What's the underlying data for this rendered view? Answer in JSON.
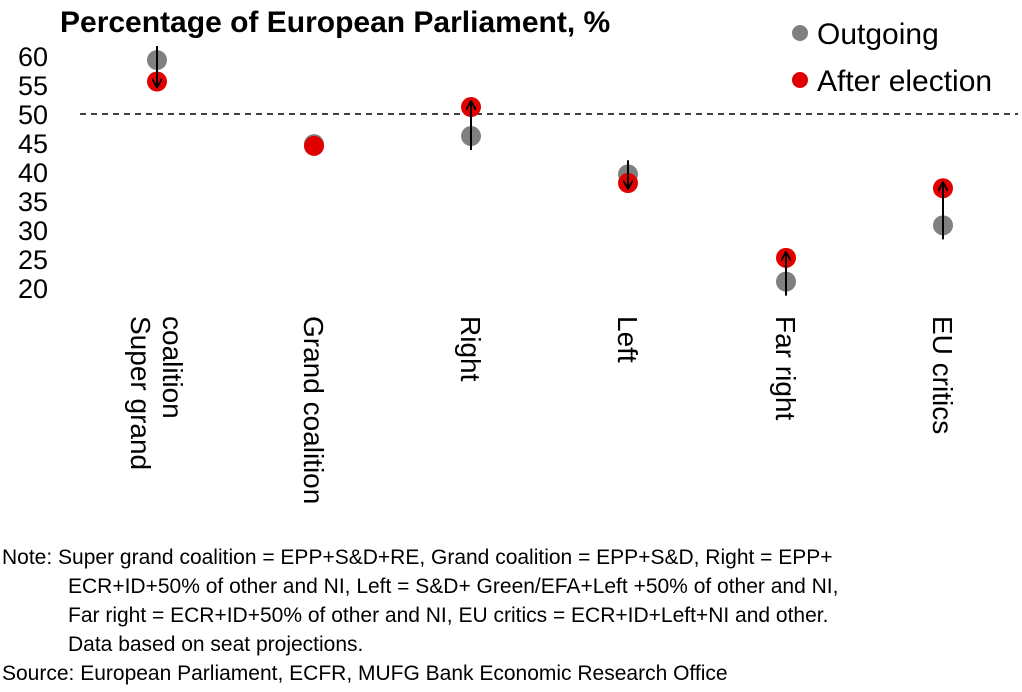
{
  "chart_data": {
    "type": "scatter",
    "title": "Percentage of European Parliament, %",
    "ylim": [
      20,
      60
    ],
    "yticks": [
      60,
      55,
      50,
      45,
      40,
      35,
      30,
      25,
      20
    ],
    "reference_line": 50,
    "categories": [
      [
        "Super grand",
        "coalition"
      ],
      [
        "Grand coalition"
      ],
      [
        "Right"
      ],
      [
        "Left"
      ],
      [
        "Far right"
      ],
      [
        "EU critics"
      ]
    ],
    "series": [
      {
        "name": "Outgoing",
        "color": "#808080",
        "values": [
          59.3,
          44.8,
          46.2,
          39.6,
          21.1,
          30.8
        ]
      },
      {
        "name": "After election",
        "color": "#e00000",
        "values": [
          55.6,
          44.5,
          51.2,
          38.1,
          25.2,
          37.2
        ]
      }
    ],
    "arrows": "from Outgoing to After election",
    "legend_position": "top-right",
    "grid": false
  },
  "notes": {
    "line1": "Note: Super grand coalition = EPP+S&D+RE, Grand coalition = EPP+S&D, Right = EPP+",
    "line2": "ECR+ID+50% of other and NI, Left = S&D+ Green/EFA+Left +50% of other and NI,",
    "line3": "Far right = ECR+ID+50% of other and NI, EU critics = ECR+ID+Left+NI and other.",
    "line4": "Data based on seat projections.",
    "source": "Source: European Parliament, ECFR, MUFG Bank Economic Research Office"
  }
}
